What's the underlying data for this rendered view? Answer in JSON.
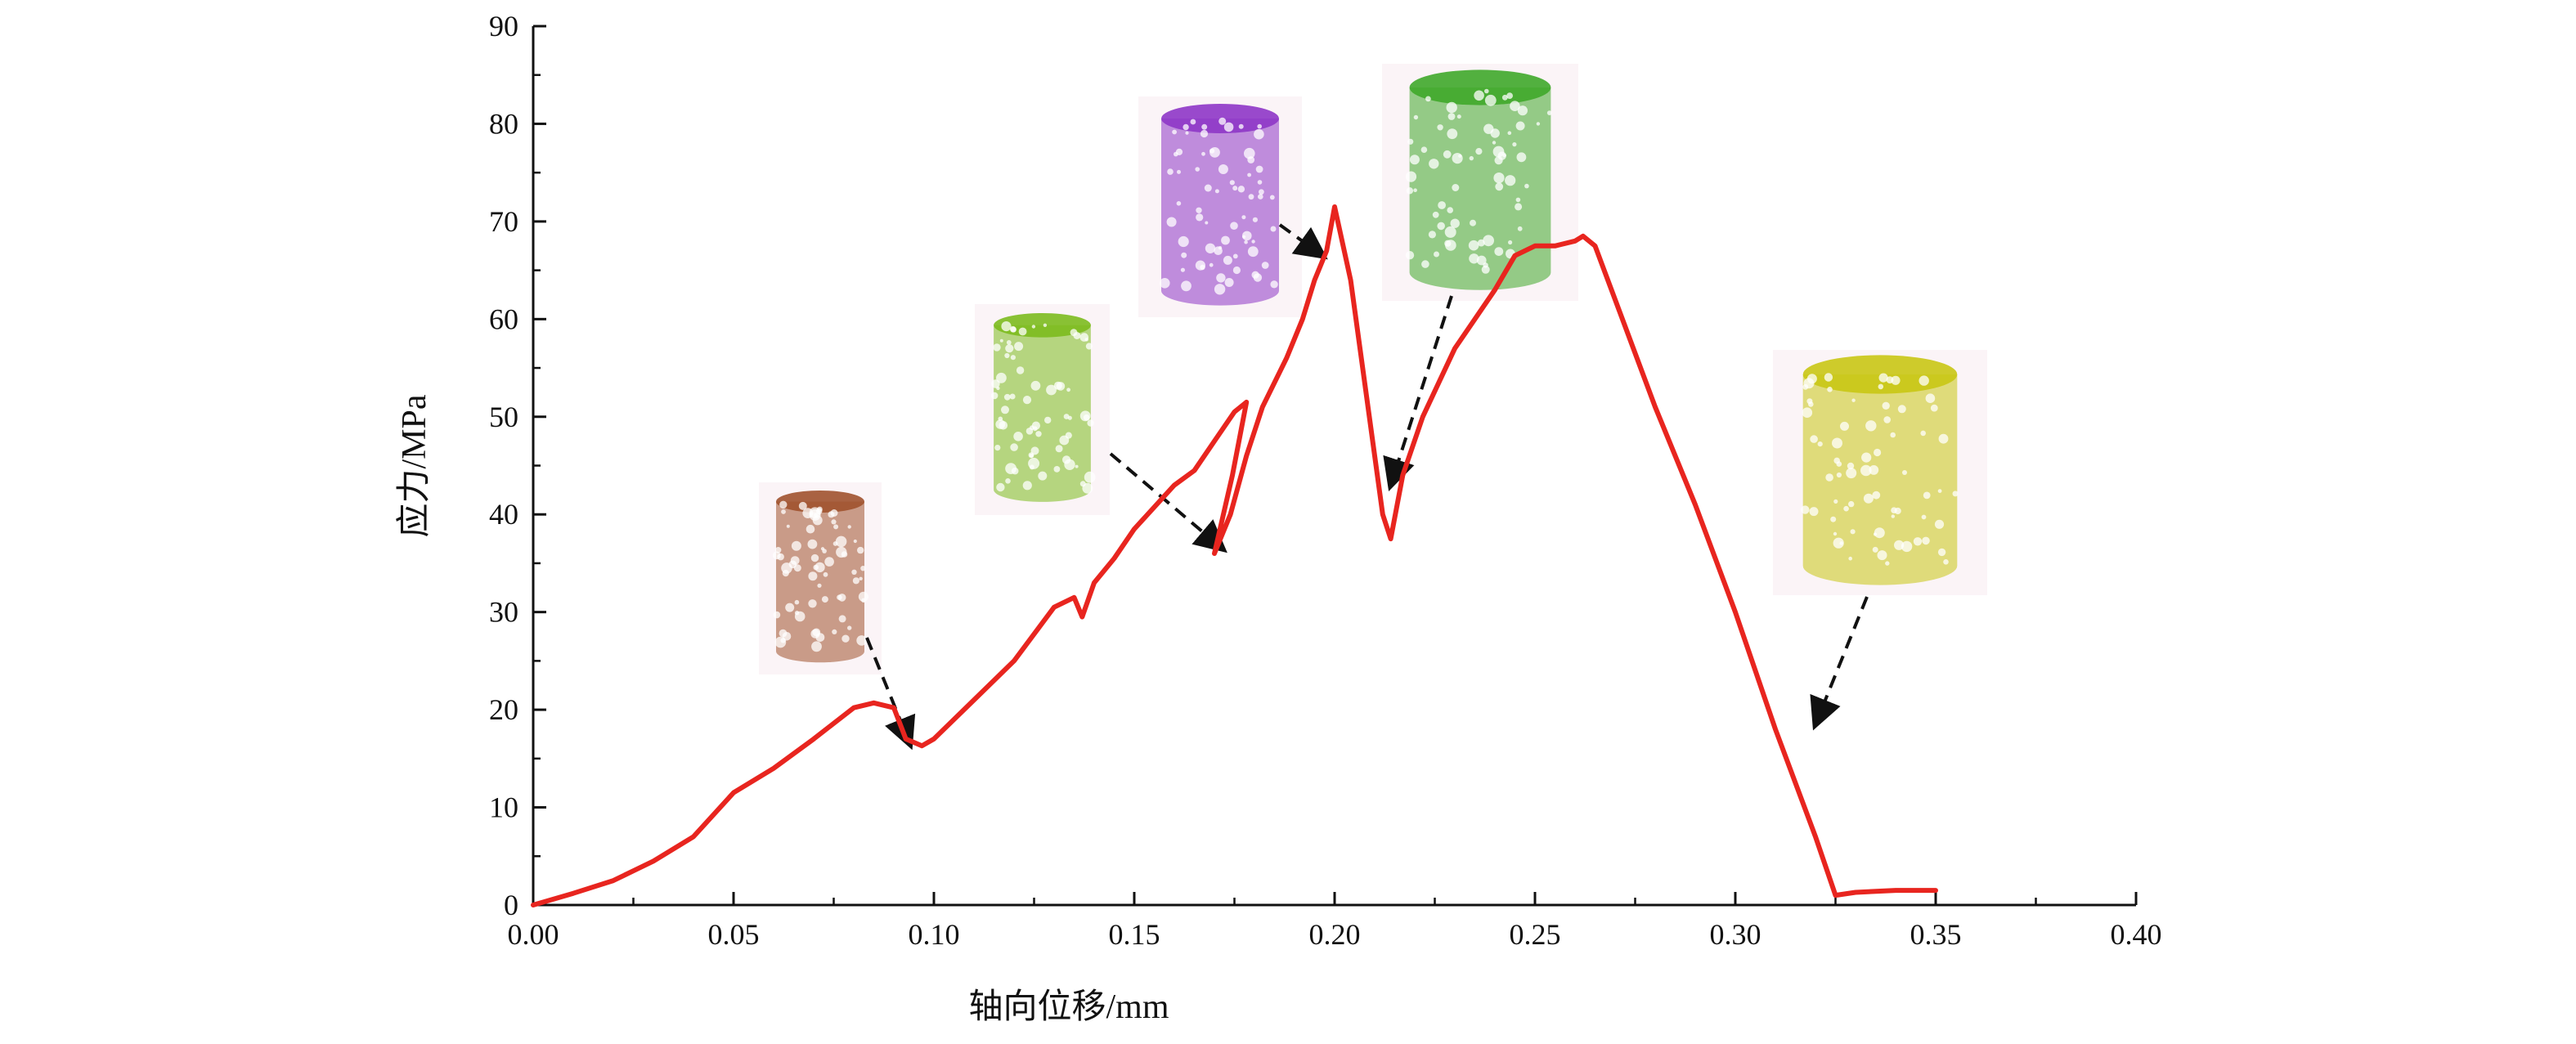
{
  "chart_data": {
    "type": "line",
    "title": "",
    "xlabel": "轴向位移/mm",
    "ylabel": "应力/MPa",
    "xlim": [
      0.0,
      0.4
    ],
    "ylim": [
      0,
      90
    ],
    "x_ticks": [
      "0.00",
      "0.05",
      "0.10",
      "0.15",
      "0.20",
      "0.25",
      "0.30",
      "0.35",
      "0.40"
    ],
    "y_ticks": [
      "0",
      "10",
      "20",
      "30",
      "40",
      "50",
      "60",
      "70",
      "80",
      "90"
    ],
    "grid": false,
    "legend": "none",
    "series": [
      {
        "color": "#e8251f",
        "x": [
          0.0,
          0.01,
          0.02,
          0.025,
          0.03,
          0.04,
          0.05,
          0.06,
          0.07,
          0.08,
          0.085,
          0.09,
          0.093,
          0.097,
          0.1,
          0.11,
          0.12,
          0.13,
          0.135,
          0.137,
          0.14,
          0.145,
          0.15,
          0.16,
          0.165,
          0.17,
          0.175,
          0.178,
          0.1745,
          0.17,
          0.174,
          0.178,
          0.182,
          0.188,
          0.192,
          0.195,
          0.198,
          0.2,
          0.204,
          0.208,
          0.212,
          0.214,
          0.217,
          0.222,
          0.23,
          0.24,
          0.245,
          0.25,
          0.255,
          0.26,
          0.262,
          0.265,
          0.27,
          0.28,
          0.29,
          0.3,
          0.31,
          0.32,
          0.325,
          0.33,
          0.34,
          0.35
        ],
        "y": [
          0,
          1.2,
          2.5,
          3.5,
          4.5,
          7,
          11.5,
          14,
          17,
          20.2,
          20.7,
          20.2,
          17,
          16.3,
          17,
          21,
          25,
          30.5,
          31.5,
          29.5,
          33,
          35.5,
          38.5,
          43,
          44.5,
          47.5,
          50.5,
          51.5,
          44,
          36,
          40,
          46,
          51,
          56,
          60,
          64,
          67,
          71.5,
          64,
          52,
          40,
          37.5,
          44,
          50,
          57,
          63,
          66.5,
          67.5,
          67.5,
          68,
          68.5,
          67.5,
          62,
          51,
          41,
          30,
          18,
          7,
          1,
          1.3,
          1.5,
          1.5
        ]
      }
    ],
    "annotations": [
      {
        "icon": "brown-rock-specimen-icon",
        "color": "#a0522d",
        "arrow_to": [
          0.094,
          16.5
        ]
      },
      {
        "icon": "lime-rock-specimen-icon",
        "color": "#7cbb1e",
        "arrow_to": [
          0.172,
          36.5
        ]
      },
      {
        "icon": "purple-rock-specimen-icon",
        "color": "#8e36c6",
        "arrow_to": [
          0.197,
          66.5
        ]
      },
      {
        "icon": "green-rock-specimen-icon",
        "color": "#3fa82a",
        "arrow_to": [
          0.214,
          43
        ]
      },
      {
        "icon": "yellow-rock-specimen-icon",
        "color": "#c9c614",
        "arrow_to": [
          0.32,
          18.5
        ]
      }
    ]
  }
}
